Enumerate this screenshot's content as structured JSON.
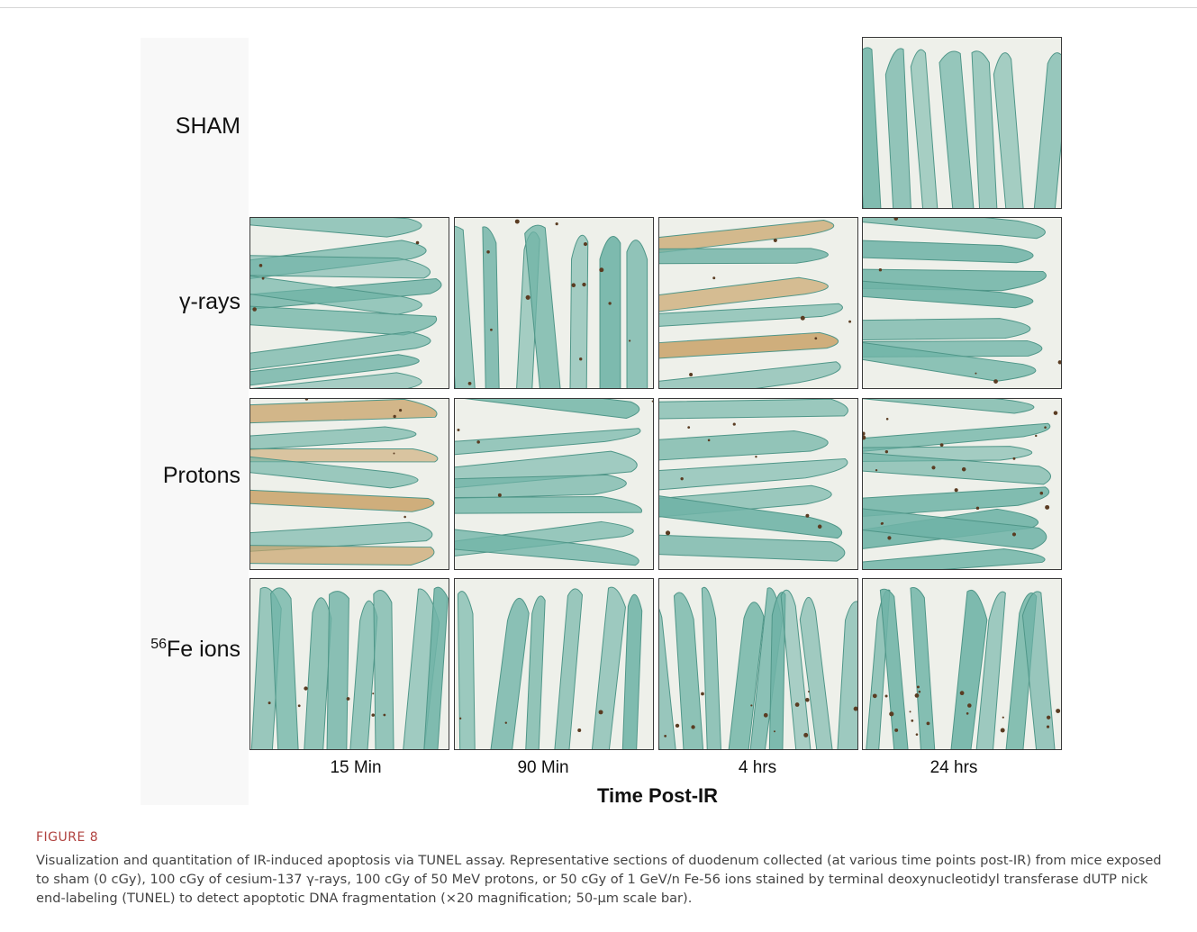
{
  "figure": {
    "rows": [
      "SHAM",
      "γ-rays",
      "Protons",
      "Fe ions"
    ],
    "fe_superscript": "56",
    "columns": [
      "15 Min",
      "90 Min",
      "4 hrs",
      "24 hrs"
    ],
    "axis_title": "Time Post-IR",
    "colors": {
      "tissue": "#6fb3a6",
      "lumen": "#eef0ea",
      "stain": "#5a3c22",
      "brown": "#c9a36a"
    }
  },
  "caption": {
    "label": "FIGURE 8",
    "text": "Visualization and quantitation of IR-induced apoptosis via TUNEL assay. Representative sections of duodenum collected (at various time points post-IR) from mice exposed to sham (0 cGy), 100 cGy of cesium-137 γ-rays, 100 cGy of 50 MeV protons, or 50 cGy of 1 GeV/n Fe-56 ions stained by terminal deoxynucleotidyl transferase dUTP nick end-labeling (TUNEL) to detect apoptotic DNA fragmentation (×20 magnification; 50-μm scale bar)."
  }
}
